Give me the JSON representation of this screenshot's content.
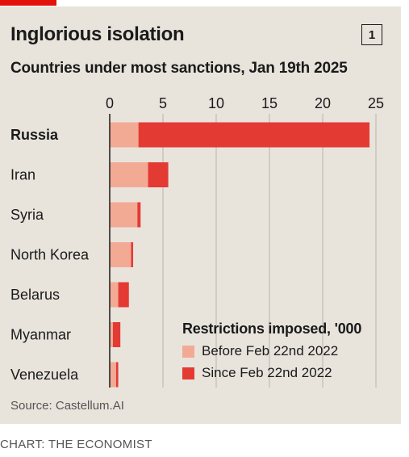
{
  "header": {
    "title": "Inglorious isolation",
    "chart_number": "1",
    "subtitle": "Countries under most sanctions, Jan 19th 2025"
  },
  "source": "Source: Castellum.AI",
  "footer": "CHART: THE ECONOMIST",
  "colors": {
    "accent_red": "#e3120b",
    "before": "#f2aa94",
    "since": "#e43a34",
    "background": "#e8e4dc"
  },
  "chart_data": {
    "type": "bar",
    "orientation": "horizontal",
    "stacked": true,
    "categories": [
      "Russia",
      "Iran",
      "Syria",
      "North Korea",
      "Belarus",
      "Myanmar",
      "Venezuela"
    ],
    "highlight_category": "Russia",
    "series": [
      {
        "name": "Before Feb 22nd 2022",
        "values": [
          2.7,
          3.6,
          2.6,
          2.0,
          0.8,
          0.3,
          0.6
        ]
      },
      {
        "name": "Since Feb 22nd 2022",
        "values": [
          21.7,
          1.9,
          0.3,
          0.2,
          1.0,
          0.7,
          0.2
        ]
      }
    ],
    "x_ticks": [
      "0",
      "5",
      "10",
      "15",
      "20",
      "25"
    ],
    "xlim": [
      0,
      25
    ],
    "legend_title": "Restrictions imposed, '000",
    "legend_position": "bottom-right",
    "grid": true
  }
}
